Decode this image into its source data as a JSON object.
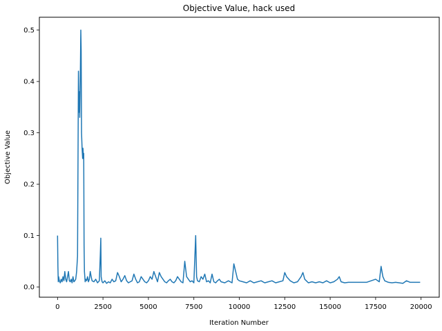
{
  "chart_data": {
    "type": "line",
    "title": "Objective Value, hack used",
    "xlabel": "Iteration Number",
    "ylabel": "Objective Value",
    "xlim": [
      -1000,
      21000
    ],
    "ylim": [
      -0.02,
      0.525
    ],
    "xticks": [
      0,
      2500,
      5000,
      7500,
      10000,
      12500,
      15000,
      17500,
      20000
    ],
    "yticks": [
      0.0,
      0.1,
      0.2,
      0.3,
      0.4,
      0.5
    ],
    "grid": false,
    "line_color": "#1f77b4",
    "series": [
      {
        "x": [
          0,
          20,
          40,
          60,
          100,
          150,
          200,
          250,
          300,
          350,
          400,
          450,
          500,
          550,
          600,
          650,
          700,
          750,
          800,
          850,
          900,
          950,
          1000,
          1050,
          1100,
          1150,
          1180,
          1200,
          1220,
          1250,
          1280,
          1300,
          1320,
          1350,
          1380,
          1400,
          1420,
          1440,
          1460,
          1480,
          1500,
          1520,
          1550,
          1600,
          1650,
          1700,
          1750,
          1800,
          1850,
          1900,
          2000,
          2100,
          2200,
          2300,
          2350,
          2380,
          2400,
          2450,
          2500,
          2600,
          2700,
          2800,
          2900,
          3000,
          3100,
          3200,
          3300,
          3400,
          3500,
          3600,
          3700,
          3800,
          3900,
          4000,
          4100,
          4200,
          4300,
          4400,
          4500,
          4600,
          4700,
          4800,
          4900,
          5000,
          5100,
          5200,
          5300,
          5400,
          5500,
          5600,
          5700,
          5800,
          5900,
          6000,
          6100,
          6200,
          6300,
          6400,
          6500,
          6600,
          6700,
          6800,
          6900,
          7000,
          7100,
          7200,
          7300,
          7400,
          7500,
          7600,
          7650,
          7700,
          7800,
          7900,
          8000,
          8100,
          8200,
          8300,
          8400,
          8500,
          8600,
          8700,
          8800,
          8900,
          9000,
          9200,
          9400,
          9600,
          9700,
          9800,
          9900,
          10000,
          10200,
          10400,
          10600,
          10800,
          11000,
          11200,
          11400,
          11600,
          11800,
          12000,
          12200,
          12400,
          12500,
          12600,
          12800,
          13000,
          13200,
          13400,
          13500,
          13600,
          13800,
          14000,
          14200,
          14400,
          14600,
          14800,
          15000,
          15200,
          15400,
          15500,
          15600,
          15800,
          16000,
          16500,
          17000,
          17500,
          17700,
          17800,
          17850,
          17900,
          18000,
          18200,
          18400,
          18600,
          18800,
          19000,
          19200,
          19400,
          19600,
          19800,
          19950
        ],
        "y": [
          0.1,
          0.04,
          0.01,
          0.02,
          0.012,
          0.008,
          0.015,
          0.01,
          0.02,
          0.012,
          0.03,
          0.015,
          0.01,
          0.02,
          0.03,
          0.012,
          0.01,
          0.015,
          0.008,
          0.02,
          0.01,
          0.012,
          0.015,
          0.03,
          0.06,
          0.42,
          0.34,
          0.38,
          0.33,
          0.4,
          0.5,
          0.46,
          0.3,
          0.27,
          0.25,
          0.27,
          0.25,
          0.26,
          0.08,
          0.03,
          0.02,
          0.01,
          0.015,
          0.012,
          0.02,
          0.01,
          0.015,
          0.03,
          0.02,
          0.012,
          0.01,
          0.015,
          0.008,
          0.012,
          0.06,
          0.095,
          0.02,
          0.01,
          0.008,
          0.012,
          0.007,
          0.01,
          0.008,
          0.015,
          0.01,
          0.012,
          0.028,
          0.02,
          0.01,
          0.015,
          0.022,
          0.012,
          0.008,
          0.01,
          0.012,
          0.025,
          0.015,
          0.008,
          0.01,
          0.02,
          0.015,
          0.01,
          0.008,
          0.012,
          0.02,
          0.015,
          0.03,
          0.02,
          0.01,
          0.028,
          0.02,
          0.015,
          0.01,
          0.008,
          0.012,
          0.015,
          0.01,
          0.008,
          0.012,
          0.02,
          0.015,
          0.01,
          0.008,
          0.05,
          0.02,
          0.015,
          0.01,
          0.012,
          0.008,
          0.1,
          0.02,
          0.012,
          0.01,
          0.02,
          0.015,
          0.025,
          0.01,
          0.012,
          0.008,
          0.025,
          0.01,
          0.008,
          0.012,
          0.015,
          0.01,
          0.008,
          0.012,
          0.008,
          0.045,
          0.03,
          0.015,
          0.012,
          0.01,
          0.008,
          0.012,
          0.008,
          0.01,
          0.012,
          0.008,
          0.01,
          0.012,
          0.008,
          0.01,
          0.012,
          0.028,
          0.02,
          0.012,
          0.008,
          0.01,
          0.02,
          0.028,
          0.015,
          0.008,
          0.01,
          0.008,
          0.01,
          0.008,
          0.012,
          0.008,
          0.01,
          0.015,
          0.02,
          0.01,
          0.008,
          0.009,
          0.009,
          0.009,
          0.015,
          0.01,
          0.04,
          0.03,
          0.02,
          0.012,
          0.009,
          0.008,
          0.009,
          0.008,
          0.007,
          0.012,
          0.009,
          0.009,
          0.009,
          0.009
        ]
      }
    ]
  }
}
